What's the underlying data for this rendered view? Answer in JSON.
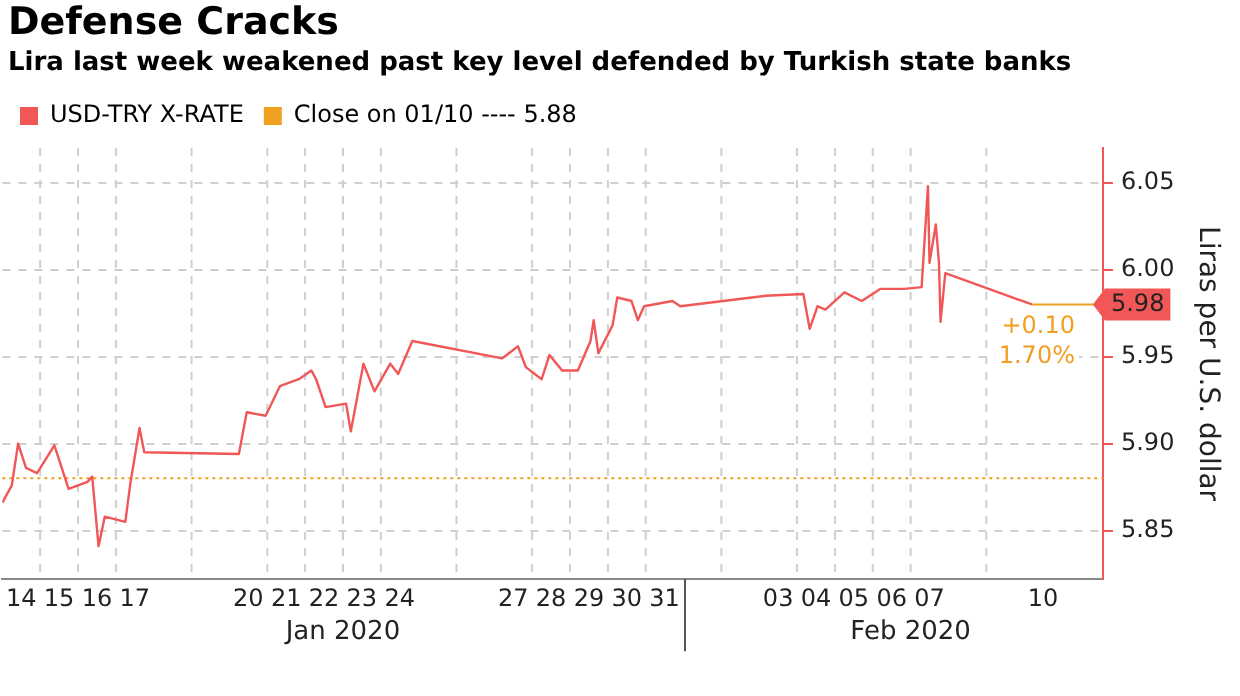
{
  "chart_data": {
    "type": "line",
    "title": "Defense Cracks",
    "subtitle": "Lira last week weakened past key level defended by Turkish state banks",
    "ylabel": "Liras per U.S. dollar",
    "x": [
      "2020-01-14T00:00",
      "2020-01-14T06:00",
      "2020-01-14T10:00",
      "2020-01-14T15:00",
      "2020-01-14T22:00",
      "2020-01-15T09:00",
      "2020-01-15T18:00",
      "2020-01-16T06:00",
      "2020-01-16T09:00",
      "2020-01-16T13:00",
      "2020-01-16T17:00",
      "2020-01-17T06:00",
      "2020-01-17T09:00",
      "2020-01-17T15:00",
      "2020-01-17T18:00",
      "2020-01-20T06:00",
      "2020-01-20T11:00",
      "2020-01-20T23:00",
      "2020-01-21T08:00",
      "2020-01-21T20:00",
      "2020-01-22T04:00",
      "2020-01-22T07:00",
      "2020-01-22T13:00",
      "2020-01-23T02:00",
      "2020-01-23T05:00",
      "2020-01-23T13:00",
      "2020-01-23T20:00",
      "2020-01-24T06:00",
      "2020-01-24T11:00",
      "2020-01-24T20:00",
      "2020-01-27T05:00",
      "2020-01-27T15:00",
      "2020-01-27T20:00",
      "2020-01-28T06:00",
      "2020-01-28T11:00",
      "2020-01-28T19:00",
      "2020-01-28T22:00",
      "2020-01-29T05:00",
      "2020-01-29T13:00",
      "2020-01-29T15:00",
      "2020-01-29T18:00",
      "2020-01-30T03:00",
      "2020-01-30T06:00",
      "2020-01-30T15:00",
      "2020-01-30T19:00",
      "2020-01-30T23:00",
      "2020-01-31T17:00",
      "2020-01-31T22:00",
      "2020-02-03T04:00",
      "2020-02-04T04:00",
      "2020-02-04T08:00",
      "2020-02-04T13:00",
      "2020-02-04T18:00",
      "2020-02-05T06:00",
      "2020-02-05T17:00",
      "2020-02-06T05:00",
      "2020-02-06T20:00",
      "2020-02-07T07:00",
      "2020-02-07T11:00",
      "2020-02-07T12:00",
      "2020-02-07T16:00",
      "2020-02-07T18:00",
      "2020-02-07T19:00",
      "2020-02-07T22:00",
      "2020-02-10T05:00"
    ],
    "series": [
      {
        "name": "USD-TRY X-RATE",
        "color": "#f25757",
        "values": [
          5.866,
          5.876,
          5.9,
          5.886,
          5.883,
          5.899,
          5.874,
          5.878,
          5.881,
          5.841,
          5.858,
          5.855,
          5.876,
          5.909,
          5.895,
          5.894,
          5.918,
          5.916,
          5.933,
          5.937,
          5.942,
          5.937,
          5.921,
          5.923,
          5.907,
          5.946,
          5.93,
          5.946,
          5.94,
          5.959,
          5.949,
          5.956,
          5.944,
          5.937,
          5.951,
          5.942,
          5.942,
          5.942,
          5.959,
          5.971,
          5.952,
          5.968,
          5.984,
          5.982,
          5.971,
          5.979,
          5.982,
          5.979,
          5.985,
          5.986,
          5.966,
          5.979,
          5.977,
          5.987,
          5.982,
          5.989,
          5.989,
          5.99,
          6.048,
          6.004,
          6.026,
          6.004,
          5.97,
          5.998,
          5.98
        ]
      }
    ],
    "xlim": [
      "2020-01-14T00:00",
      "2020-02-12T02:00"
    ],
    "xticks": [
      {
        "value": "2020-01-14T12:00",
        "label": "14"
      },
      {
        "value": "2020-01-15T12:00",
        "label": "15"
      },
      {
        "value": "2020-01-16T12:00",
        "label": "16"
      },
      {
        "value": "2020-01-17T12:00",
        "label": "17"
      },
      {
        "value": "2020-01-20T12:00",
        "label": "20"
      },
      {
        "value": "2020-01-21T12:00",
        "label": "21"
      },
      {
        "value": "2020-01-22T12:00",
        "label": "22"
      },
      {
        "value": "2020-01-23T12:00",
        "label": "23"
      },
      {
        "value": "2020-01-24T12:00",
        "label": "24"
      },
      {
        "value": "2020-01-27T12:00",
        "label": "27"
      },
      {
        "value": "2020-01-28T12:00",
        "label": "28"
      },
      {
        "value": "2020-01-29T12:00",
        "label": "29"
      },
      {
        "value": "2020-01-30T12:00",
        "label": "30"
      },
      {
        "value": "2020-01-31T12:00",
        "label": "31"
      },
      {
        "value": "2020-02-03T12:00",
        "label": "03"
      },
      {
        "value": "2020-02-04T12:00",
        "label": "04"
      },
      {
        "value": "2020-02-05T12:00",
        "label": "05"
      },
      {
        "value": "2020-02-06T12:00",
        "label": "06"
      },
      {
        "value": "2020-02-07T12:00",
        "label": "07"
      },
      {
        "value": "2020-02-10T12:00",
        "label": "10"
      }
    ],
    "ylim": [
      5.822,
      6.07
    ],
    "yticks": [
      5.85,
      {
        "value": 5.9,
        "label": "5.90"
      },
      5.95,
      {
        "value": 6.0,
        "label": "6.00"
      },
      6.05
    ],
    "ref_lines": [
      {
        "axis": "y",
        "value": 5.88,
        "label": "Close on 01/10 ---- 5.88",
        "color": "#f0a020",
        "line_style": "dotted"
      }
    ],
    "annotations": [
      "Jan 2020",
      "Feb 2020",
      {
        "text": "5.98",
        "x": "2020-02-10T05:00",
        "y": 5.98
      },
      {
        "text": "+0.10",
        "x": "2020-02-10T05:00",
        "y": 5.98
      },
      {
        "text": "1.70%",
        "x": "2020-02-10T05:00",
        "y": 5.98
      }
    ],
    "grid": true,
    "legend": "top left",
    "marker": "none",
    "line_style": "solid"
  }
}
